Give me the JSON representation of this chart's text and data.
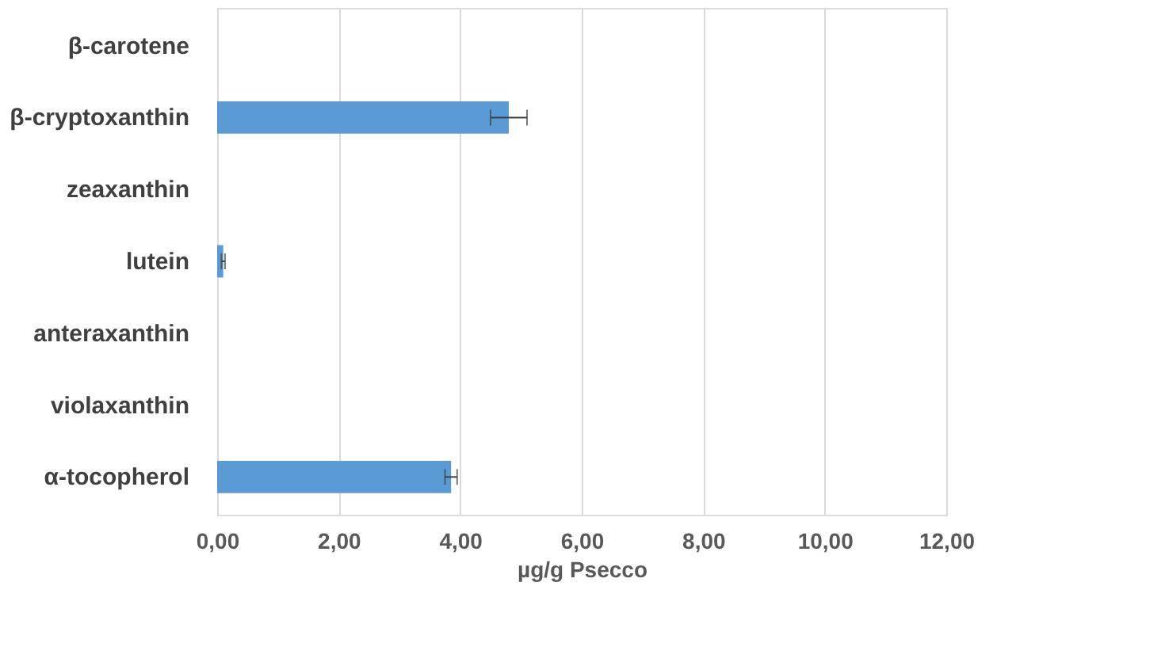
{
  "chart_data": {
    "type": "bar",
    "orientation": "horizontal",
    "xlabel": "µg/g Psecco",
    "categories": [
      "β-carotene",
      "β-cryptoxanthin",
      "zeaxanthin",
      "lutein",
      "anteraxanthin",
      "violaxanthin",
      "α-tocopherol"
    ],
    "values": [
      0,
      4.8,
      0,
      0.1,
      0,
      0,
      3.85
    ],
    "errors": [
      null,
      0.3,
      null,
      0.03,
      null,
      null,
      0.1
    ],
    "color": "#5b9bd5",
    "xlim": [
      0,
      12
    ],
    "xticks": [
      {
        "value": 0,
        "label": "0,00"
      },
      {
        "value": 2,
        "label": "2,00"
      },
      {
        "value": 4,
        "label": "4,00"
      },
      {
        "value": 6,
        "label": "6,00"
      },
      {
        "value": 8,
        "label": "8,00"
      },
      {
        "value": 10,
        "label": "10,00"
      },
      {
        "value": 12,
        "label": "12,00"
      }
    ],
    "grid": "x"
  }
}
